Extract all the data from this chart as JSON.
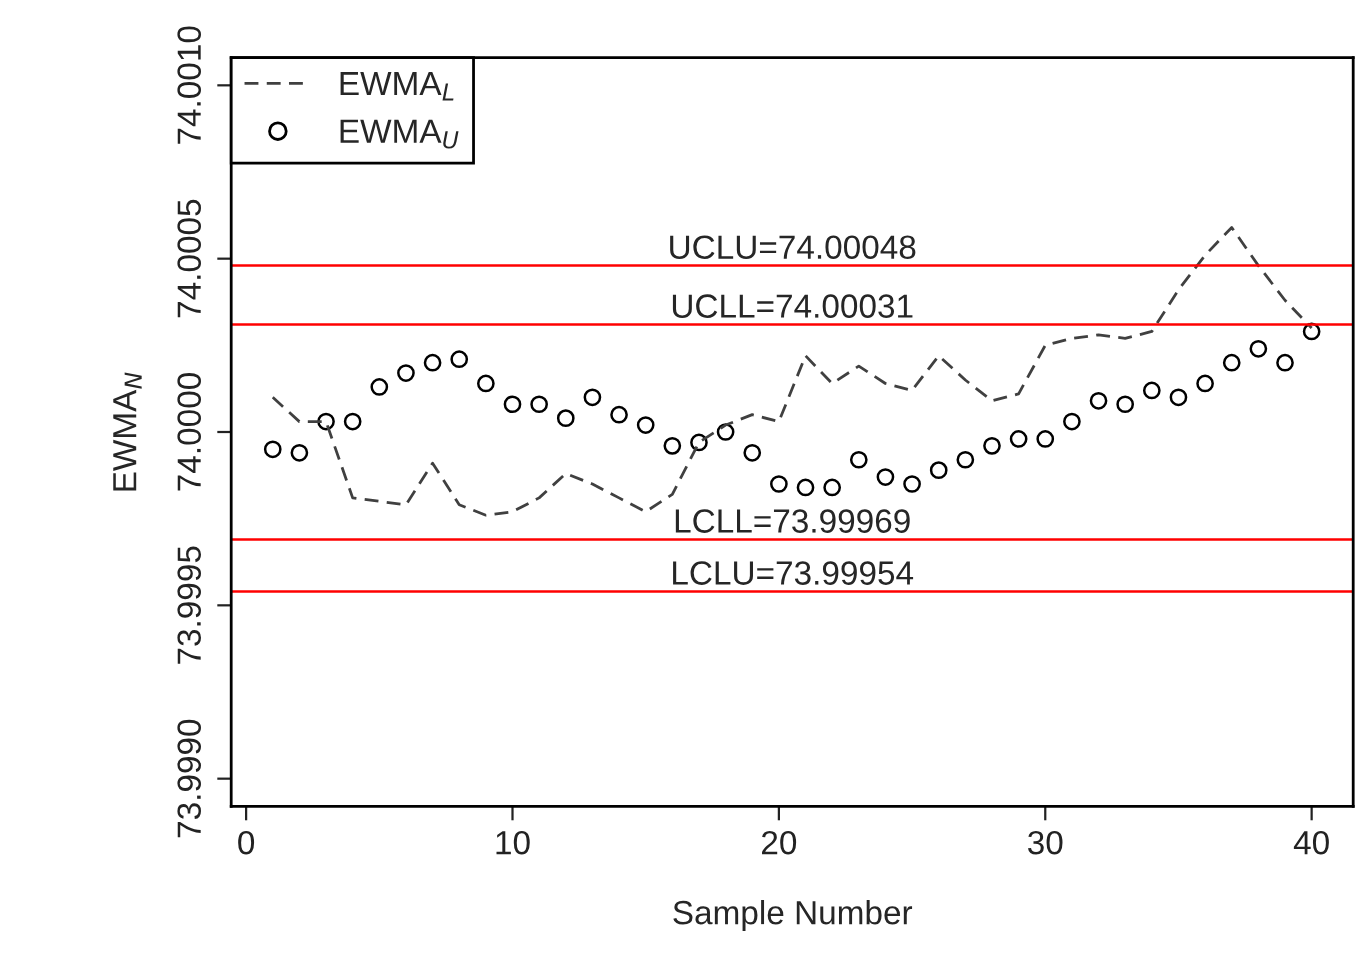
{
  "chart_data": {
    "type": "line",
    "xlabel": "Sample Number",
    "ylabel": "EWMA$_{N}$",
    "x": [
      1,
      2,
      3,
      4,
      5,
      6,
      7,
      8,
      9,
      10,
      11,
      12,
      13,
      14,
      15,
      16,
      17,
      18,
      19,
      20,
      21,
      22,
      23,
      24,
      25,
      26,
      27,
      28,
      29,
      30,
      31,
      32,
      33,
      34,
      35,
      36,
      37,
      38,
      39,
      40
    ],
    "series": [
      {
        "name": "EWMA$_{L}$",
        "line_style": "dashed",
        "marker": "none",
        "color": "#404040",
        "values": [
          74.0001,
          74.00003,
          74.00003,
          73.99981,
          73.9998,
          73.99979,
          73.99991,
          73.99979,
          73.99976,
          73.99977,
          73.99981,
          73.99988,
          73.99985,
          73.99981,
          73.99977,
          73.99982,
          73.99997,
          74.00002,
          74.00005,
          74.00003,
          74.00022,
          74.00014,
          74.00019,
          74.00014,
          74.00012,
          74.00022,
          74.00015,
          74.00009,
          74.00011,
          74.00025,
          74.00027,
          74.00028,
          74.00027,
          74.00029,
          74.00041,
          74.00051,
          74.00059,
          74.00048,
          74.00038,
          74.0003
        ]
      },
      {
        "name": "EWMA$_{U}$",
        "type": "scatter",
        "marker": "circle",
        "color": "#000000",
        "values": [
          73.99995,
          73.99994,
          74.00003,
          74.00003,
          74.00013,
          74.00017,
          74.0002,
          74.00021,
          74.00014,
          74.00008,
          74.00008,
          74.00004,
          74.0001,
          74.00005,
          74.00002,
          73.99996,
          73.99997,
          74.0,
          73.99994,
          73.99985,
          73.99984,
          73.99984,
          73.99992,
          73.99987,
          73.99985,
          73.99989,
          73.99992,
          73.99996,
          73.99998,
          73.99998,
          74.00003,
          74.00009,
          74.00008,
          74.00012,
          74.0001,
          74.00014,
          74.0002,
          74.00024,
          74.0002,
          74.00029
        ]
      }
    ],
    "ref_lines": [
      {
        "axis": "y",
        "value": 74.00048,
        "label": "UCLU=74.00048",
        "color": "#ff0000"
      },
      {
        "axis": "y",
        "value": 74.00031,
        "label": "UCLL=74.00031",
        "color": "#ff0000"
      },
      {
        "axis": "y",
        "value": 73.99969,
        "label": "LCLL=73.99969",
        "color": "#ff0000"
      },
      {
        "axis": "y",
        "value": 73.99954,
        "label": "LCLU=73.99954",
        "color": "#ff0000"
      }
    ],
    "xlim": [
      -0.56,
      41.56
    ],
    "ylim": [
      73.99892,
      74.00108
    ],
    "xticks": [
      0,
      10,
      20,
      30,
      40
    ],
    "yticks": [
      {
        "value": 73.999,
        "label": "73.9990"
      },
      {
        "value": 73.9995,
        "label": "73.9995"
      },
      {
        "value": 74.0,
        "label": "74.0000"
      },
      {
        "value": 74.0005,
        "label": "74.0005"
      },
      {
        "value": 74.001,
        "label": "74.0010"
      }
    ],
    "grid": false,
    "legend": "top left"
  }
}
